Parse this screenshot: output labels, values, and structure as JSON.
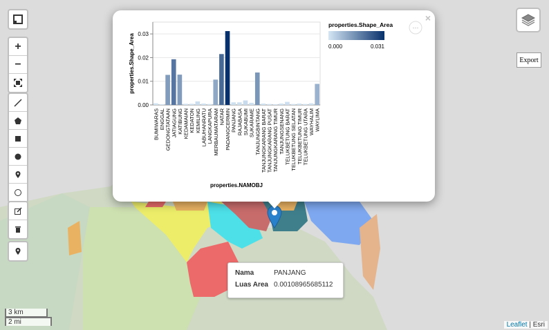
{
  "map": {
    "attribution": {
      "leaflet": "Leaflet",
      "separator": "|",
      "provider": "Esri"
    },
    "scale": {
      "km": "3 km",
      "mi": "2 mi"
    },
    "export_label": "Export",
    "controls": {
      "fullscreen_icon": "fullscreen-icon",
      "zoom_in": "+",
      "zoom_out": "−",
      "draw_tools": [
        "polyline-icon",
        "polygon-icon",
        "rectangle-icon",
        "circle-icon",
        "marker-icon",
        "circlemarker-icon"
      ],
      "edit_tools": [
        "edit-icon",
        "trash-icon"
      ],
      "locate_icon": "pin-icon"
    },
    "colors": {
      "marker": "#2a81cb",
      "popup_bg": "#ffffff"
    }
  },
  "popup": {
    "close": "×",
    "menu": "···",
    "chart_data": {
      "type": "bar",
      "title": "",
      "xlabel": "properties.NAMOBJ",
      "ylabel": "properties.Shape_Area",
      "ylim": [
        0,
        0.035
      ],
      "yticks": [
        "0.00",
        "0.01",
        "0.02",
        "0.03"
      ],
      "legend": {
        "title": "properties.Shape_Area",
        "min_label": "0.000",
        "max_label": "0.031",
        "placement": "top-right"
      },
      "categories": [
        "BUMIWARAS",
        "ENGGAL",
        "GEDONGTATAAN",
        "JATIAGUNG",
        "KATIBUNG",
        "KEDAMAIAN",
        "KEDATON",
        "KEMILING",
        "LABUHANRATU",
        "LANGKAPURA",
        "MERBAUMATARAM",
        "NATAR",
        "PADANGCERMIN",
        "PANJANG",
        "RAJABASA",
        "SUKABUMI",
        "SUKARAME",
        "TANJUNGBINTANG",
        "TANJUNGKARANG BARAT",
        "TANJUNGKARANG PUSAT",
        "TANJUNGKARANG TIMUR",
        "TANJUNGSENANG",
        "TELUKBETUNG BARAT",
        "TELUKBETUNG SELATAN",
        "TELUKBETUNG TIMUR",
        "TELUKBETUNG UTARA",
        "WAYHALIM",
        "WAYLIMA"
      ],
      "values": [
        0.0007,
        0.0003,
        0.0127,
        0.0193,
        0.0128,
        0.0005,
        0.0005,
        0.0015,
        0.0006,
        0.0004,
        0.0107,
        0.0215,
        0.0312,
        0.0011,
        0.0011,
        0.0019,
        0.0009,
        0.0137,
        0.0006,
        0.0004,
        0.0003,
        0.0006,
        0.0013,
        0.0004,
        0.0006,
        0.0004,
        0.0007,
        0.0089
      ]
    }
  },
  "tooltip": {
    "name_key": "Nama",
    "name_value": "PANJANG",
    "area_key": "Luas Area",
    "area_value": "0.00108965685112"
  }
}
